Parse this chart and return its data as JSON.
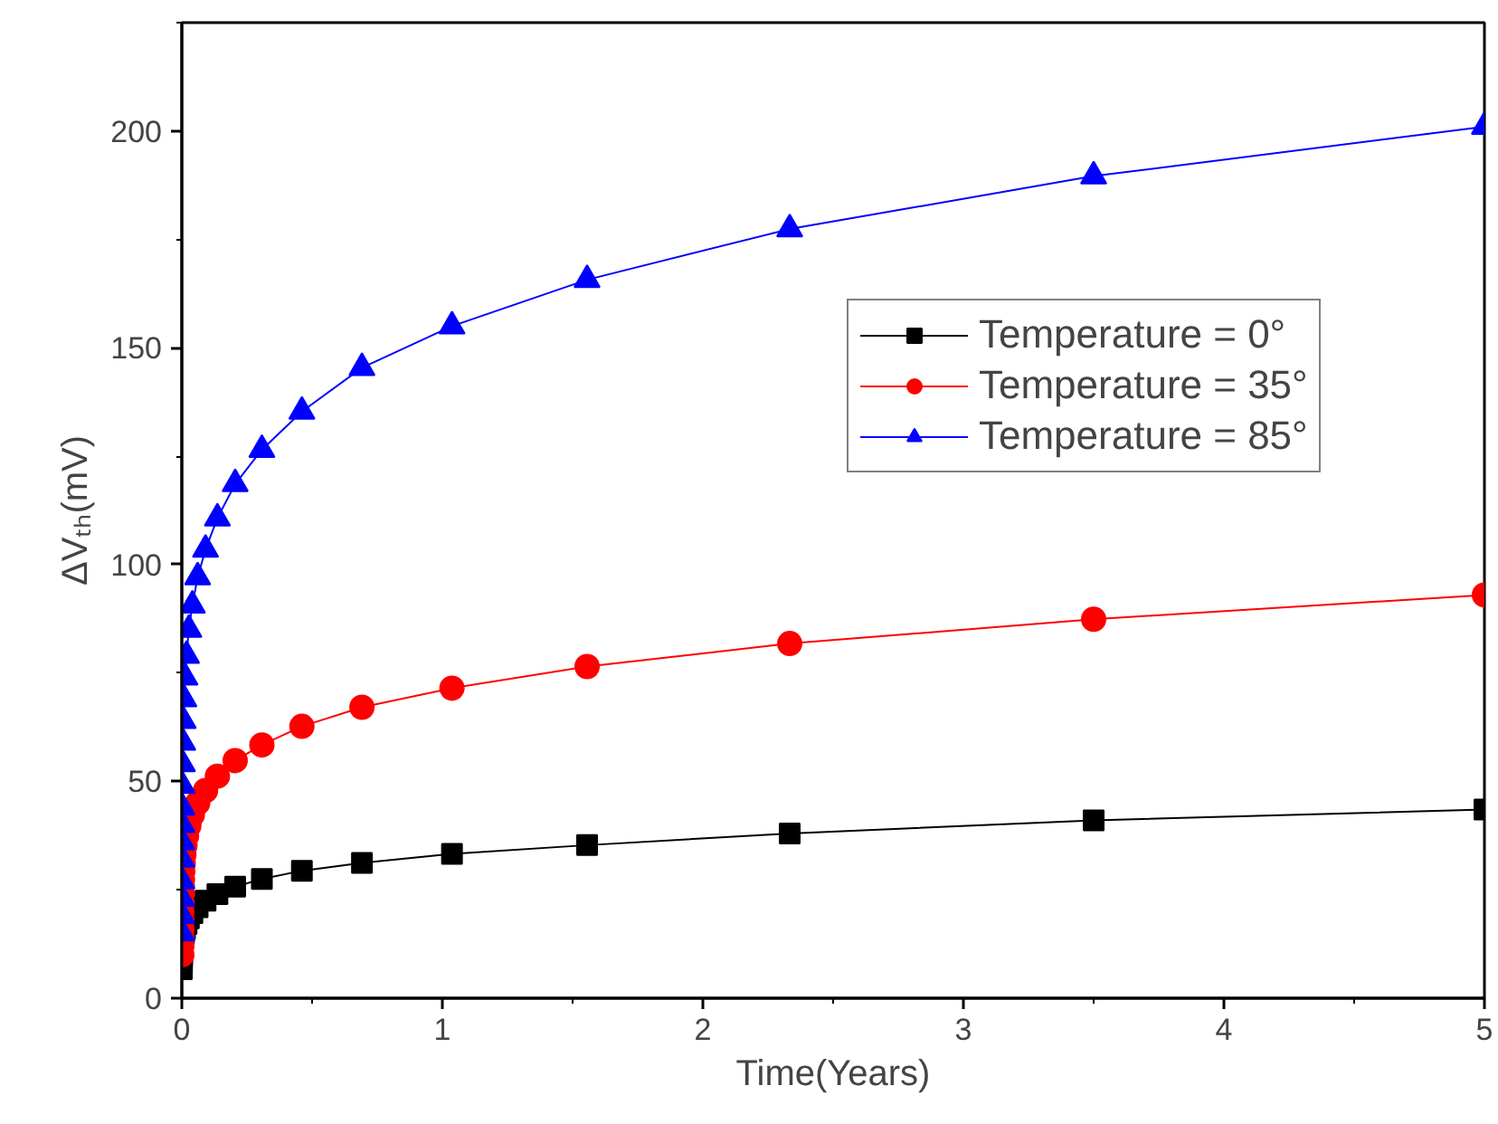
{
  "chart_data": {
    "type": "line",
    "xlabel": "Time(Years)",
    "ylabel": "ΔVₜₕ(mV)",
    "xlim": [
      0,
      5
    ],
    "ylim": [
      0,
      225
    ],
    "xticks": [
      0,
      {
        "value": 0.5,
        "label": null
      },
      1,
      {
        "value": 1.5,
        "label": null
      },
      2,
      {
        "value": 2.5,
        "label": null
      },
      3,
      {
        "value": 3.5,
        "label": null
      },
      4,
      {
        "value": 4.5,
        "label": null
      },
      5
    ],
    "yticks": [
      0,
      {
        "value": 25,
        "label": null
      },
      50,
      {
        "value": 75,
        "label": null
      },
      100,
      {
        "value": 125,
        "label": null
      },
      150,
      {
        "value": 175,
        "label": null
      },
      200,
      {
        "value": 225,
        "label": null
      }
    ],
    "grid": false,
    "legend": "right",
    "line_style": "solid",
    "x": [
      5,
      3.5,
      2.3333,
      1.5556,
      1.037,
      0.6914,
      0.4609,
      0.3073,
      0.2048,
      0.1366,
      0.09105,
      0.0607,
      0.04047,
      0.02698,
      0.01799,
      0.01199,
      0.007993,
      0.005329,
      0.003553,
      0.002368,
      0.001579,
      0.001053,
      0.0007017,
      0.0004678,
      0.0003119,
      0.0002079,
      0.0001386,
      9.24e-05,
      6.16e-05
    ],
    "series": [
      {
        "name": "Temperature = 0°",
        "color": "#000000",
        "marker": "square",
        "values": [
          43.5,
          41.0,
          38.0,
          35.3,
          33.3,
          31.2,
          29.4,
          27.5,
          25.7,
          24.0,
          22.5,
          21.0,
          19.6,
          18.4,
          17.1,
          16.0,
          15.0,
          14.0,
          13.1,
          12.2,
          11.4,
          10.7,
          10.0,
          9.3,
          8.7,
          8.1,
          7.6,
          7.1,
          6.7
        ]
      },
      {
        "name": "Temperature = 35°",
        "color": "#ff0000",
        "marker": "circle",
        "values": [
          93,
          87.4,
          81.8,
          76.5,
          71.5,
          67.1,
          62.7,
          58.4,
          54.8,
          51.2,
          47.9,
          45.0,
          42.3,
          39.8,
          37.4,
          35.2,
          33.1,
          31.1,
          29.2,
          27.4,
          25.8,
          24.2,
          22.0,
          20.0,
          18.0,
          16.0,
          14.0,
          12.0,
          10.0
        ]
      },
      {
        "name": "Temperature = 85°",
        "color": "#0000ff",
        "marker": "triangle",
        "values": [
          201,
          189.6,
          177.4,
          165.7,
          155.0,
          145.4,
          135.3,
          126.5,
          118.6,
          110.7,
          103.5,
          97.1,
          90.6,
          85,
          79,
          74,
          69,
          64,
          59,
          54,
          49,
          44,
          40,
          36,
          32,
          27,
          23,
          19,
          15
        ]
      }
    ]
  }
}
